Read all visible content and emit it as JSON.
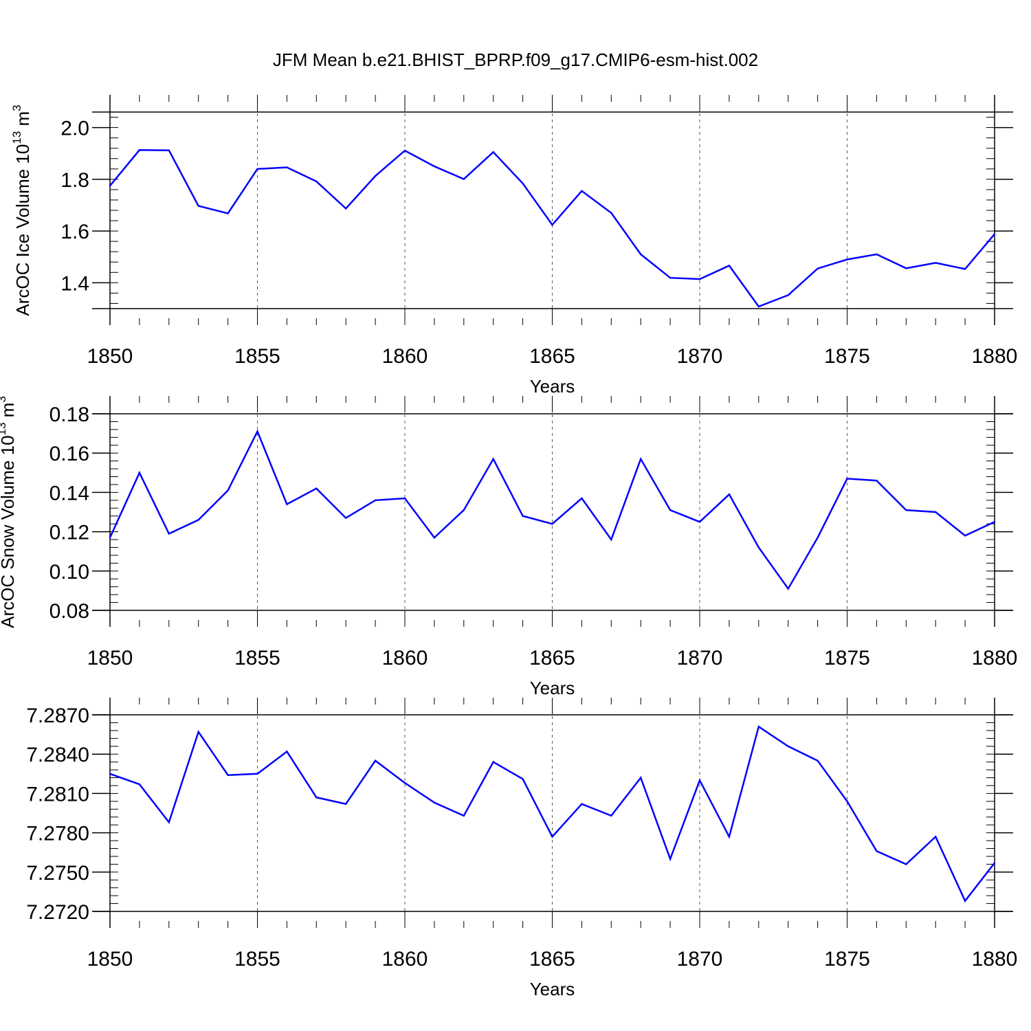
{
  "title": "JFM Mean b.e21.BHIST_BPRP.f09_g17.CMIP6-esm-hist.002",
  "colors": {
    "line": "#0000ff",
    "axis": "#000000",
    "grid": "#555555"
  },
  "chart_data": [
    {
      "type": "line",
      "ylabel": "ArcOC Ice Volume 10",
      "ylabel_exp": "13",
      "ylabel_unit": " m",
      "ylabel_unit_exp": "3",
      "xlabel": "Years",
      "xlim": [
        1850,
        1880
      ],
      "ylim": [
        1.3,
        2.06
      ],
      "yticks": [
        1.4,
        1.6,
        1.8,
        2.0
      ],
      "yticklabels": [
        "1.4",
        "1.6",
        "1.8",
        "2.0"
      ],
      "xticks": [
        1850,
        1855,
        1860,
        1865,
        1870,
        1875,
        1880
      ],
      "xticklabels": [
        "1850",
        "1855",
        "1860",
        "1865",
        "1870",
        "1875",
        "1880"
      ],
      "grid": "vertical dashed at major x ticks",
      "x": [
        1850,
        1851,
        1852,
        1853,
        1854,
        1855,
        1856,
        1857,
        1858,
        1859,
        1860,
        1861,
        1862,
        1863,
        1864,
        1865,
        1866,
        1867,
        1868,
        1869,
        1870,
        1871,
        1872,
        1873,
        1874,
        1875,
        1876,
        1877,
        1878,
        1879,
        1880
      ],
      "values": [
        1.775,
        1.913,
        1.912,
        1.697,
        1.668,
        1.84,
        1.846,
        1.792,
        1.687,
        1.813,
        1.911,
        1.85,
        1.801,
        1.905,
        1.784,
        1.624,
        1.755,
        1.67,
        1.51,
        1.419,
        1.414,
        1.466,
        1.308,
        1.352,
        1.455,
        1.49,
        1.51,
        1.456,
        1.477,
        1.453,
        1.588
      ]
    },
    {
      "type": "line",
      "ylabel": "ArcOC Snow Volume 10",
      "ylabel_exp": "13",
      "ylabel_unit": " m",
      "ylabel_unit_exp": "3",
      "xlabel": "Years",
      "xlim": [
        1850,
        1880
      ],
      "ylim": [
        0.08,
        0.18
      ],
      "yticks": [
        0.08,
        0.1,
        0.12,
        0.14,
        0.16,
        0.18
      ],
      "yticklabels": [
        "0.08",
        "0.10",
        "0.12",
        "0.14",
        "0.16",
        "0.18"
      ],
      "xticks": [
        1850,
        1855,
        1860,
        1865,
        1870,
        1875,
        1880
      ],
      "xticklabels": [
        "1850",
        "1855",
        "1860",
        "1865",
        "1870",
        "1875",
        "1880"
      ],
      "grid": "vertical dashed at major x ticks",
      "x": [
        1850,
        1851,
        1852,
        1853,
        1854,
        1855,
        1856,
        1857,
        1858,
        1859,
        1860,
        1861,
        1862,
        1863,
        1864,
        1865,
        1866,
        1867,
        1868,
        1869,
        1870,
        1871,
        1872,
        1873,
        1874,
        1875,
        1876,
        1877,
        1878,
        1879,
        1880
      ],
      "values": [
        0.117,
        0.15,
        0.119,
        0.126,
        0.141,
        0.171,
        0.134,
        0.142,
        0.127,
        0.136,
        0.137,
        0.117,
        0.131,
        0.157,
        0.128,
        0.124,
        0.137,
        0.116,
        0.157,
        0.131,
        0.125,
        0.139,
        0.112,
        0.091,
        0.117,
        0.147,
        0.146,
        0.131,
        0.13,
        0.118,
        0.125
      ]
    },
    {
      "type": "line",
      "ylabel": "",
      "xlabel": "Years",
      "xlim": [
        1850,
        1880
      ],
      "ylim": [
        7.272,
        7.287
      ],
      "yticks": [
        7.272,
        7.275,
        7.278,
        7.281,
        7.284,
        7.287
      ],
      "yticklabels": [
        "7.2720",
        "7.2750",
        "7.2780",
        "7.2810",
        "7.2840",
        "7.2870"
      ],
      "xticks": [
        1850,
        1855,
        1860,
        1865,
        1870,
        1875,
        1880
      ],
      "xticklabels": [
        "1850",
        "1855",
        "1860",
        "1865",
        "1870",
        "1875",
        "1880"
      ],
      "grid": "vertical dashed at major x ticks",
      "x": [
        1850,
        1851,
        1852,
        1853,
        1854,
        1855,
        1856,
        1857,
        1858,
        1859,
        1860,
        1861,
        1862,
        1863,
        1864,
        1865,
        1866,
        1867,
        1868,
        1869,
        1870,
        1871,
        1872,
        1873,
        1874,
        1875,
        1876,
        1877,
        1878,
        1879,
        1880
      ],
      "values": [
        7.2825,
        7.2817,
        7.2788,
        7.2857,
        7.2824,
        7.2825,
        7.2842,
        7.2807,
        7.2802,
        7.2835,
        7.2818,
        7.2803,
        7.2793,
        7.2834,
        7.2821,
        7.2777,
        7.2802,
        7.2793,
        7.2822,
        7.276,
        7.282,
        7.2777,
        7.2861,
        7.2846,
        7.2835,
        7.2804,
        7.2766,
        7.2756,
        7.2777,
        7.2728,
        7.2757
      ]
    }
  ]
}
